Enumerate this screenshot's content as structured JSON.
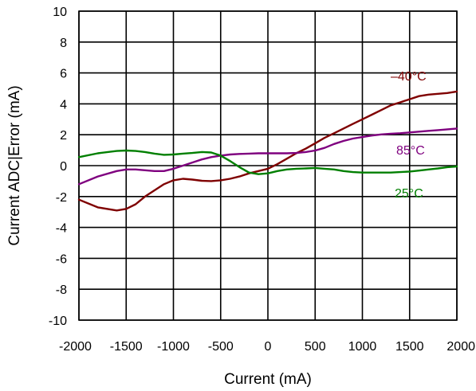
{
  "chart_data": {
    "type": "line",
    "title": "",
    "xlabel": "Current (mA)",
    "ylabel": "Current ADC|Error  (mA)",
    "xlim": [
      -2000,
      2000
    ],
    "ylim": [
      -10,
      10
    ],
    "grid": true,
    "x_ticks": [
      -2000,
      -1500,
      -1000,
      -500,
      0,
      500,
      1000,
      1500,
      2000
    ],
    "y_ticks": [
      10,
      8,
      6,
      4,
      2,
      0,
      -2,
      -4,
      -6,
      -8,
      -10
    ],
    "x_tick_labels": [
      "-2000",
      "-1500",
      "-1000",
      "-500",
      "0",
      "500",
      "1000",
      "1500",
      "2000"
    ],
    "y_tick_labels": [
      "10",
      "8",
      "6",
      "4",
      "2",
      "0",
      "-2",
      "-4",
      "-6",
      "-8",
      "-10"
    ],
    "series": [
      {
        "name": "–40°C",
        "color": "#7f0000",
        "x": [
          -2000,
          -1800,
          -1600,
          -1500,
          -1400,
          -1300,
          -1200,
          -1100,
          -1000,
          -900,
          -800,
          -700,
          -600,
          -500,
          -400,
          -300,
          -200,
          -100,
          0,
          100,
          200,
          300,
          400,
          500,
          600,
          700,
          800,
          900,
          1000,
          1100,
          1200,
          1300,
          1400,
          1500,
          1600,
          1700,
          1800,
          1900,
          2000
        ],
        "values": [
          -2.2,
          -2.7,
          -2.9,
          -2.8,
          -2.5,
          -2.0,
          -1.6,
          -1.2,
          -0.95,
          -0.85,
          -0.9,
          -0.98,
          -1.0,
          -0.95,
          -0.85,
          -0.7,
          -0.5,
          -0.35,
          -0.2,
          0.1,
          0.45,
          0.8,
          1.1,
          1.45,
          1.8,
          2.1,
          2.4,
          2.7,
          3.0,
          3.3,
          3.6,
          3.9,
          4.1,
          4.3,
          4.5,
          4.6,
          4.65,
          4.7,
          4.8
        ]
      },
      {
        "name": "85°C",
        "color": "#7f007f",
        "x": [
          -2000,
          -1800,
          -1600,
          -1500,
          -1400,
          -1300,
          -1200,
          -1100,
          -1000,
          -900,
          -800,
          -700,
          -600,
          -500,
          -400,
          -300,
          -200,
          -100,
          0,
          100,
          200,
          300,
          400,
          500,
          600,
          700,
          800,
          900,
          1000,
          1100,
          1200,
          1300,
          1400,
          1500,
          1600,
          1700,
          1800,
          1900,
          2000
        ],
        "values": [
          -1.2,
          -0.7,
          -0.35,
          -0.25,
          -0.25,
          -0.3,
          -0.35,
          -0.35,
          -0.2,
          0.0,
          0.2,
          0.4,
          0.55,
          0.65,
          0.72,
          0.76,
          0.78,
          0.8,
          0.8,
          0.8,
          0.8,
          0.82,
          0.88,
          0.98,
          1.15,
          1.4,
          1.6,
          1.75,
          1.85,
          1.95,
          2.02,
          2.06,
          2.1,
          2.15,
          2.2,
          2.25,
          2.3,
          2.35,
          2.4
        ]
      },
      {
        "name": "25°C",
        "color": "#007f00",
        "x": [
          -2000,
          -1800,
          -1600,
          -1500,
          -1400,
          -1300,
          -1200,
          -1100,
          -1000,
          -900,
          -800,
          -700,
          -600,
          -500,
          -400,
          -300,
          -200,
          -100,
          0,
          100,
          200,
          300,
          400,
          500,
          600,
          700,
          800,
          900,
          1000,
          1100,
          1200,
          1300,
          1400,
          1500,
          1600,
          1700,
          1800,
          1900,
          2000
        ],
        "values": [
          0.55,
          0.8,
          0.95,
          0.98,
          0.95,
          0.88,
          0.78,
          0.7,
          0.72,
          0.78,
          0.82,
          0.88,
          0.85,
          0.65,
          0.3,
          -0.1,
          -0.45,
          -0.55,
          -0.5,
          -0.35,
          -0.25,
          -0.2,
          -0.18,
          -0.15,
          -0.2,
          -0.25,
          -0.35,
          -0.42,
          -0.45,
          -0.45,
          -0.45,
          -0.45,
          -0.42,
          -0.38,
          -0.32,
          -0.25,
          -0.18,
          -0.1,
          -0.05
        ]
      }
    ],
    "annotations": [
      {
        "text": "–40°C",
        "series": 0,
        "color": "#7f0000"
      },
      {
        "text": "85°C",
        "series": 1,
        "color": "#7f007f"
      },
      {
        "text": "25°C",
        "series": 2,
        "color": "#007f00"
      }
    ]
  }
}
